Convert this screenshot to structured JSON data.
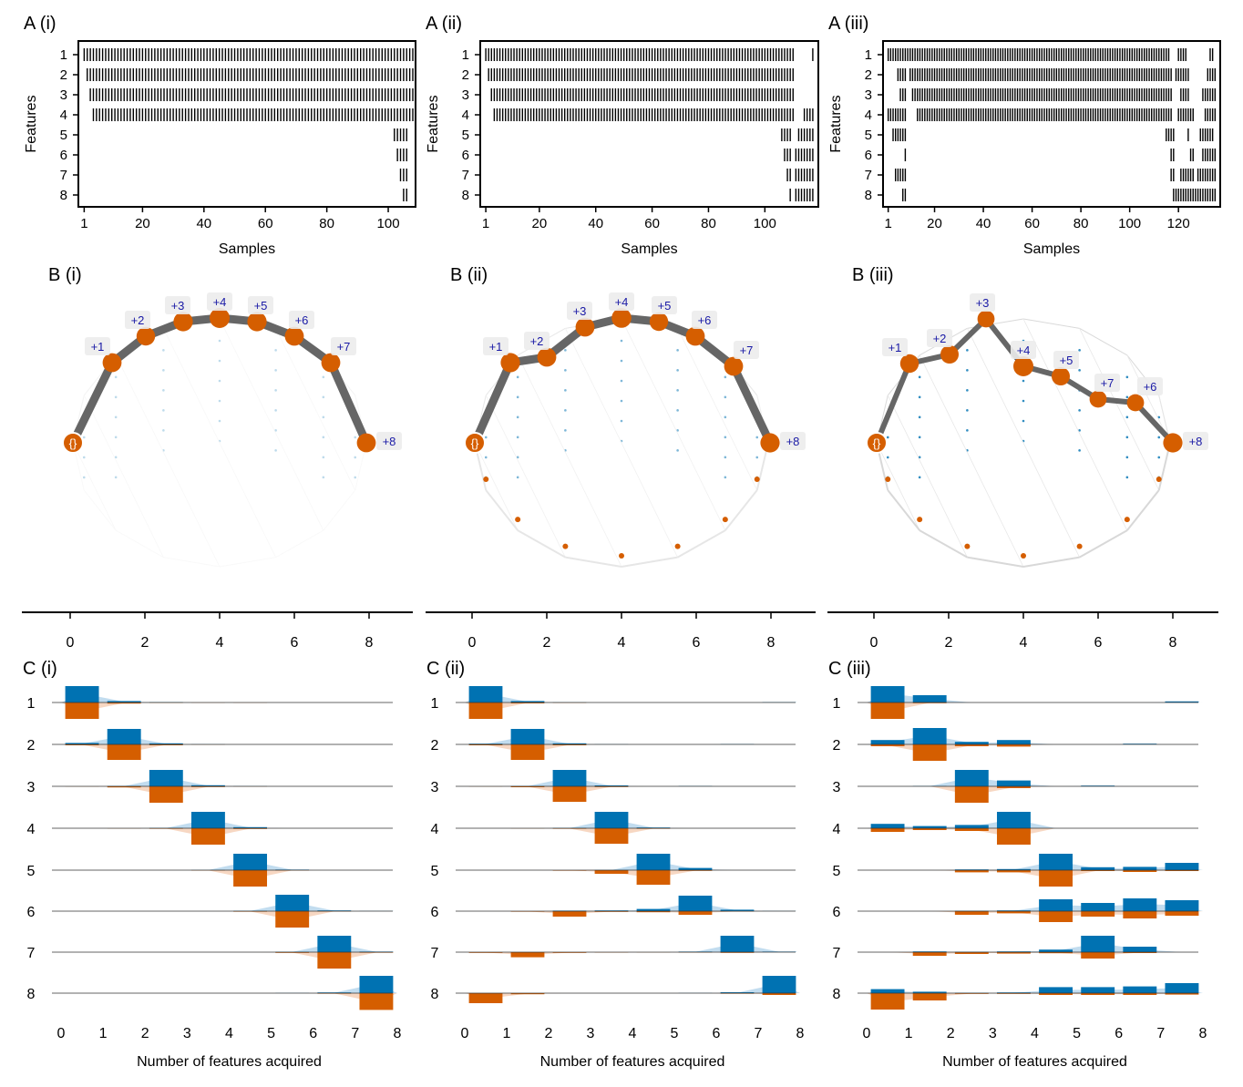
{
  "colors": {
    "blue": "#0072b2",
    "orange": "#d55e00",
    "blue_light": "#a6cde8",
    "orange_light": "#f4c6a8",
    "edge": "#666666",
    "label_box": "#ececec"
  },
  "chart_data": [
    {
      "type": "heatmap",
      "panel": "A (i)",
      "xlabel": "Samples",
      "ylabel": "Features",
      "y_ticks": [
        "1",
        "2",
        "3",
        "4",
        "5",
        "6",
        "7",
        "8"
      ],
      "x_ticks": [
        1,
        20,
        40,
        60,
        80,
        100
      ],
      "xlim": [
        0,
        108
      ],
      "rows": [
        {
          "feature": "1",
          "ranges": [
            [
              1,
              108
            ]
          ]
        },
        {
          "feature": "2",
          "ranges": [
            [
              2,
              108
            ]
          ]
        },
        {
          "feature": "3",
          "ranges": [
            [
              3,
              108
            ]
          ]
        },
        {
          "feature": "4",
          "ranges": [
            [
              4,
              108
            ]
          ]
        },
        {
          "feature": "5",
          "ranges": [
            [
              102,
              106
            ]
          ]
        },
        {
          "feature": "6",
          "ranges": [
            [
              103,
              106
            ]
          ]
        },
        {
          "feature": "7",
          "ranges": [
            [
              104,
              106
            ]
          ]
        },
        {
          "feature": "8",
          "ranges": [
            [
              105,
              106
            ]
          ]
        }
      ]
    },
    {
      "type": "heatmap",
      "panel": "A (ii)",
      "xlabel": "Samples",
      "ylabel": "Features",
      "y_ticks": [
        "1",
        "2",
        "3",
        "4",
        "5",
        "6",
        "7",
        "8"
      ],
      "x_ticks": [
        1,
        20,
        40,
        60,
        80,
        100
      ],
      "xlim": [
        0,
        118
      ],
      "rows": [
        {
          "feature": "1",
          "ranges": [
            [
              1,
              110
            ],
            [
              117,
              117
            ]
          ]
        },
        {
          "feature": "2",
          "ranges": [
            [
              2,
              110
            ]
          ]
        },
        {
          "feature": "3",
          "ranges": [
            [
              3,
              110
            ]
          ]
        },
        {
          "feature": "4",
          "ranges": [
            [
              4,
              110
            ],
            [
              114,
              117
            ]
          ]
        },
        {
          "feature": "5",
          "ranges": [
            [
              106,
              109
            ],
            [
              112,
              117
            ]
          ]
        },
        {
          "feature": "6",
          "ranges": [
            [
              107,
              109
            ],
            [
              111,
              117
            ]
          ]
        },
        {
          "feature": "7",
          "ranges": [
            [
              108,
              109
            ],
            [
              111,
              117
            ]
          ]
        },
        {
          "feature": "8",
          "ranges": [
            [
              109,
              109
            ],
            [
              111,
              117
            ]
          ]
        }
      ]
    },
    {
      "type": "heatmap",
      "panel": "A (iii)",
      "xlabel": "Samples",
      "ylabel": "Features",
      "y_ticks": [
        "1",
        "2",
        "3",
        "4",
        "5",
        "6",
        "7",
        "8"
      ],
      "x_ticks": [
        1,
        20,
        40,
        60,
        80,
        100,
        120
      ],
      "xlim": [
        0,
        136
      ],
      "rows": [
        {
          "feature": "1",
          "ranges": [
            [
              1,
              116
            ],
            [
              120,
              123
            ],
            [
              133,
              134
            ]
          ]
        },
        {
          "feature": "2",
          "ranges": [
            [
              5,
              8
            ],
            [
              10,
              117
            ],
            [
              119,
              124
            ],
            [
              132,
              135
            ]
          ]
        },
        {
          "feature": "3",
          "ranges": [
            [
              6,
              8
            ],
            [
              11,
              117
            ],
            [
              121,
              124
            ],
            [
              130,
              135
            ]
          ]
        },
        {
          "feature": "4",
          "ranges": [
            [
              1,
              8
            ],
            [
              13,
              117
            ],
            [
              120,
              126
            ],
            [
              131,
              135
            ]
          ]
        },
        {
          "feature": "5",
          "ranges": [
            [
              3,
              8
            ],
            [
              115,
              118
            ],
            [
              124,
              124
            ],
            [
              129,
              134
            ]
          ]
        },
        {
          "feature": "6",
          "ranges": [
            [
              8,
              8
            ],
            [
              117,
              118
            ],
            [
              125,
              126
            ],
            [
              130,
              135
            ]
          ]
        },
        {
          "feature": "7",
          "ranges": [
            [
              4,
              8
            ],
            [
              117,
              118
            ],
            [
              121,
              126
            ],
            [
              128,
              135
            ]
          ]
        },
        {
          "feature": "8",
          "ranges": [
            [
              7,
              8
            ],
            [
              118,
              135
            ]
          ]
        }
      ]
    },
    {
      "type": "diagram",
      "panel": "B (i)",
      "path_labels": [
        "{}",
        "+1",
        "+2",
        "+3",
        "+4",
        "+5",
        "+6",
        "+7",
        "+8"
      ],
      "path_node_sizes": [
        1,
        0.85,
        0.8,
        0.9,
        1,
        0.9,
        0.85,
        0.85,
        0.85
      ]
    },
    {
      "type": "diagram",
      "panel": "B (ii)",
      "path_labels": [
        "{}",
        "+1",
        "+2",
        "+3",
        "+4",
        "+5",
        "+6",
        "+7",
        "+8"
      ],
      "path_node_sizes": [
        1,
        0.9,
        0.85,
        0.85,
        0.95,
        0.8,
        0.85,
        0.85,
        0.9
      ]
    },
    {
      "type": "diagram",
      "panel": "B (iii)",
      "path_labels": [
        "{}",
        "+1",
        "+2",
        "+3",
        "+4",
        "+5",
        "+7",
        "+6",
        "+8"
      ],
      "path_node_sizes": [
        1,
        0.8,
        0.75,
        0.6,
        1,
        0.75,
        0.6,
        0.6,
        0.9
      ]
    },
    {
      "type": "bar",
      "panel": "C (i)",
      "orientation": "mirrored",
      "xlabel": "Number of features acquired",
      "x_ticks": [
        0,
        1,
        2,
        3,
        4,
        5,
        6,
        7,
        8
      ],
      "top_axis_ticks": [
        0,
        2,
        4,
        6,
        8
      ],
      "rows": [
        "1",
        "2",
        "3",
        "4",
        "5",
        "6",
        "7",
        "8"
      ],
      "series": [
        {
          "name": "blue",
          "values": [
            [
              0.9,
              0.08,
              0.02,
              0,
              0,
              0,
              0,
              0
            ],
            [
              0.08,
              0.85,
              0.06,
              0.01,
              0,
              0,
              0,
              0
            ],
            [
              0,
              0.02,
              0.9,
              0.06,
              0.01,
              0,
              0,
              0
            ],
            [
              0,
              0,
              0.02,
              0.9,
              0.06,
              0,
              0,
              0
            ],
            [
              0,
              0,
              0,
              0.01,
              0.9,
              0.03,
              0,
              0
            ],
            [
              0,
              0,
              0,
              0,
              0.02,
              0.9,
              0.04,
              0.01
            ],
            [
              0,
              0,
              0,
              0,
              0,
              0.02,
              0.9,
              0.03
            ],
            [
              0,
              0,
              0,
              0,
              0,
              0.01,
              0.04,
              0.95
            ]
          ]
        },
        {
          "name": "orange",
          "values": [
            [
              0.9,
              0.06,
              0.02,
              0.01,
              0.01,
              0,
              0,
              0
            ],
            [
              0.05,
              0.85,
              0.05,
              0.01,
              0,
              0,
              0,
              0
            ],
            [
              0.01,
              0.06,
              0.9,
              0.04,
              0.01,
              0,
              0,
              0
            ],
            [
              0,
              0.01,
              0.03,
              0.9,
              0.04,
              0,
              0,
              0
            ],
            [
              0,
              0,
              0,
              0.02,
              0.9,
              0.02,
              0,
              0
            ],
            [
              0,
              0,
              0,
              0,
              0.03,
              0.9,
              0.02,
              0
            ],
            [
              0,
              0,
              0,
              0,
              0,
              0.04,
              0.9,
              0.03
            ],
            [
              0,
              0,
              0,
              0,
              0,
              0,
              0.03,
              0.92
            ]
          ]
        }
      ]
    },
    {
      "type": "bar",
      "panel": "C (ii)",
      "orientation": "mirrored",
      "xlabel": "Number of features acquired",
      "x_ticks": [
        0,
        1,
        2,
        3,
        4,
        5,
        6,
        7,
        8
      ],
      "top_axis_ticks": [
        0,
        2,
        4,
        6,
        8
      ],
      "rows": [
        "1",
        "2",
        "3",
        "4",
        "5",
        "6",
        "7",
        "8"
      ],
      "series": [
        {
          "name": "blue",
          "values": [
            [
              0.9,
              0.08,
              0.01,
              0,
              0,
              0,
              0,
              0.02
            ],
            [
              0.04,
              0.85,
              0.06,
              0.01,
              0,
              0,
              0.02,
              0
            ],
            [
              0,
              0.02,
              0.9,
              0.05,
              0,
              0.02,
              0,
              0
            ],
            [
              0,
              0,
              0.02,
              0.9,
              0.04,
              0,
              0,
              0
            ],
            [
              0,
              0,
              0,
              0.01,
              0.9,
              0.12,
              0,
              0
            ],
            [
              0,
              0,
              0.03,
              0.04,
              0.12,
              0.85,
              0.08,
              0.01
            ],
            [
              0,
              0,
              0,
              0,
              0,
              0.03,
              0.9,
              0.03
            ],
            [
              0,
              0,
              0,
              0,
              0,
              0.01,
              0.05,
              0.95
            ]
          ]
        },
        {
          "name": "orange",
          "values": [
            [
              0.9,
              0.05,
              0.02,
              0,
              0,
              0,
              0,
              0
            ],
            [
              0.05,
              0.85,
              0.05,
              0,
              0,
              0,
              0,
              0
            ],
            [
              0.01,
              0.05,
              0.85,
              0.04,
              0,
              0,
              0,
              0
            ],
            [
              0,
              0.01,
              0.03,
              0.85,
              0.03,
              0,
              0,
              0
            ],
            [
              0,
              0,
              0.03,
              0.2,
              0.8,
              0.04,
              0,
              0
            ],
            [
              0,
              0.03,
              0.3,
              0.04,
              0.06,
              0.2,
              0.02,
              0
            ],
            [
              0.04,
              0.28,
              0.04,
              0.02,
              0.01,
              0.02,
              0.04,
              0
            ],
            [
              0.55,
              0.06,
              0,
              0,
              0,
              0,
              0.03,
              0.1
            ]
          ]
        }
      ]
    },
    {
      "type": "bar",
      "panel": "C (iii)",
      "orientation": "mirrored",
      "xlabel": "Number of features acquired",
      "x_ticks": [
        0,
        1,
        2,
        3,
        4,
        5,
        6,
        7,
        8
      ],
      "top_axis_ticks": [
        0,
        2,
        4,
        6,
        8
      ],
      "rows": [
        "1",
        "2",
        "3",
        "4",
        "5",
        "6",
        "7",
        "8"
      ],
      "series": [
        {
          "name": "blue",
          "values": [
            [
              0.9,
              0.4,
              0,
              0,
              0,
              0,
              0,
              0.06
            ],
            [
              0.24,
              0.9,
              0.14,
              0.24,
              0,
              0,
              0.04,
              0
            ],
            [
              0,
              0.02,
              0.9,
              0.32,
              0,
              0.04,
              0,
              0
            ],
            [
              0.24,
              0.12,
              0.18,
              0.9,
              0,
              0,
              0,
              0
            ],
            [
              0,
              0,
              0.04,
              0.06,
              0.9,
              0.16,
              0.18,
              0.4
            ],
            [
              0,
              0,
              0.02,
              0.04,
              0.65,
              0.45,
              0.7,
              0.6
            ],
            [
              0,
              0.04,
              0.02,
              0.04,
              0.14,
              0.9,
              0.3,
              0
            ],
            [
              0.22,
              0.08,
              0.02,
              0.04,
              0.33,
              0.33,
              0.37,
              0.55
            ]
          ]
        },
        {
          "name": "orange",
          "values": [
            [
              0.9,
              0.04,
              0,
              0,
              0,
              0,
              0,
              0
            ],
            [
              0.1,
              0.9,
              0.1,
              0.12,
              0,
              0,
              0,
              0
            ],
            [
              0,
              0,
              0.9,
              0.1,
              0,
              0,
              0,
              0
            ],
            [
              0.2,
              0.1,
              0.15,
              0.9,
              0,
              0,
              0,
              0
            ],
            [
              0,
              0,
              0.12,
              0.12,
              0.9,
              0.05,
              0.1,
              0.05
            ],
            [
              0,
              0,
              0.2,
              0.12,
              0.6,
              0.3,
              0.4,
              0.25
            ],
            [
              0,
              0.2,
              0.1,
              0.08,
              0.06,
              0.35,
              0.05,
              0
            ],
            [
              0.9,
              0.4,
              0.04,
              0.04,
              0.1,
              0.1,
              0.1,
              0.08
            ]
          ]
        }
      ]
    }
  ]
}
